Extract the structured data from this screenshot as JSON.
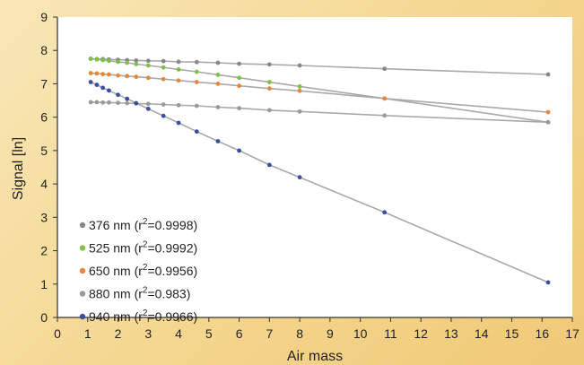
{
  "chart_data": {
    "type": "line",
    "title": "",
    "xlabel": "Air mass",
    "ylabel": "Signal [ln]",
    "xlim": [
      0,
      17
    ],
    "ylim": [
      0,
      9
    ],
    "x_ticks": [
      0,
      1,
      2,
      3,
      4,
      5,
      6,
      7,
      8,
      9,
      10,
      11,
      12,
      13,
      14,
      15,
      16,
      17
    ],
    "y_ticks": [
      0,
      1,
      2,
      3,
      4,
      5,
      6,
      7,
      8,
      9
    ],
    "grid": false,
    "legend_position": "lower-left",
    "plot_background": "#ffffff",
    "series": [
      {
        "name": "376 nm (r²=0.9998)",
        "legend_prefix": "376 nm (r",
        "legend_sup": "2",
        "legend_suffix": "=0.9998)",
        "color": "#888888",
        "x": [
          1.1,
          1.3,
          1.5,
          1.7,
          2.0,
          2.3,
          2.6,
          3.0,
          3.5,
          4.0,
          4.6,
          5.3,
          6.0,
          7.0,
          8.0,
          10.8,
          16.2
        ],
        "y": [
          7.75,
          7.74,
          7.74,
          7.73,
          7.72,
          7.71,
          7.7,
          7.69,
          7.68,
          7.66,
          7.65,
          7.63,
          7.6,
          7.58,
          7.55,
          7.45,
          7.28
        ]
      },
      {
        "name": "525 nm (r²=0.9992)",
        "legend_prefix": "525 nm (r",
        "legend_sup": "2",
        "legend_suffix": "=0.9992)",
        "color": "#7dc243",
        "x": [
          1.1,
          1.3,
          1.5,
          1.7,
          2.0,
          2.3,
          2.6,
          3.0,
          3.5,
          4.0,
          4.6,
          5.3,
          6.0,
          7.0,
          8.0,
          10.8,
          16.2
        ],
        "y": [
          7.75,
          7.73,
          7.71,
          7.69,
          7.66,
          7.63,
          7.59,
          7.55,
          7.49,
          7.43,
          7.36,
          7.27,
          7.18,
          7.05,
          6.92,
          6.56,
          5.85
        ]
      },
      {
        "name": "650 nm (r²=0.9956)",
        "legend_prefix": "650 nm (r",
        "legend_sup": "2",
        "legend_suffix": "=0.9956)",
        "color": "#e8873a",
        "x": [
          1.1,
          1.3,
          1.5,
          1.7,
          2.0,
          2.3,
          2.6,
          3.0,
          3.5,
          4.0,
          4.6,
          5.3,
          6.0,
          7.0,
          8.0,
          10.8,
          16.2
        ],
        "y": [
          7.32,
          7.31,
          7.29,
          7.28,
          7.25,
          7.23,
          7.21,
          7.18,
          7.14,
          7.1,
          7.05,
          7.0,
          6.94,
          6.86,
          6.79,
          6.56,
          6.15
        ]
      },
      {
        "name": "880 nm (r²=0.983)",
        "legend_prefix": "880 nm (r",
        "legend_sup": "2",
        "legend_suffix": "=0.983)",
        "color": "#9a9a9a",
        "x": [
          1.1,
          1.3,
          1.5,
          1.7,
          2.0,
          2.3,
          2.6,
          3.0,
          3.5,
          4.0,
          4.6,
          5.3,
          6.0,
          7.0,
          8.0,
          10.8,
          16.2
        ],
        "y": [
          6.45,
          6.45,
          6.44,
          6.44,
          6.43,
          6.42,
          6.41,
          6.4,
          6.38,
          6.36,
          6.34,
          6.3,
          6.27,
          6.21,
          6.17,
          6.05,
          5.85
        ]
      },
      {
        "name": "940 nm (r²=0.9966)",
        "legend_prefix": "940 nm (r",
        "legend_sup": "2",
        "legend_suffix": "=0.9966)",
        "color": "#3b4ea3",
        "x": [
          1.1,
          1.3,
          1.5,
          1.7,
          2.0,
          2.3,
          2.6,
          3.0,
          3.5,
          4.0,
          4.6,
          5.3,
          6.0,
          7.0,
          8.0,
          10.8,
          16.2
        ],
        "y": [
          7.05,
          6.97,
          6.88,
          6.8,
          6.67,
          6.55,
          6.42,
          6.25,
          6.04,
          5.83,
          5.57,
          5.28,
          5.0,
          4.57,
          4.2,
          3.15,
          1.05
        ]
      }
    ]
  }
}
